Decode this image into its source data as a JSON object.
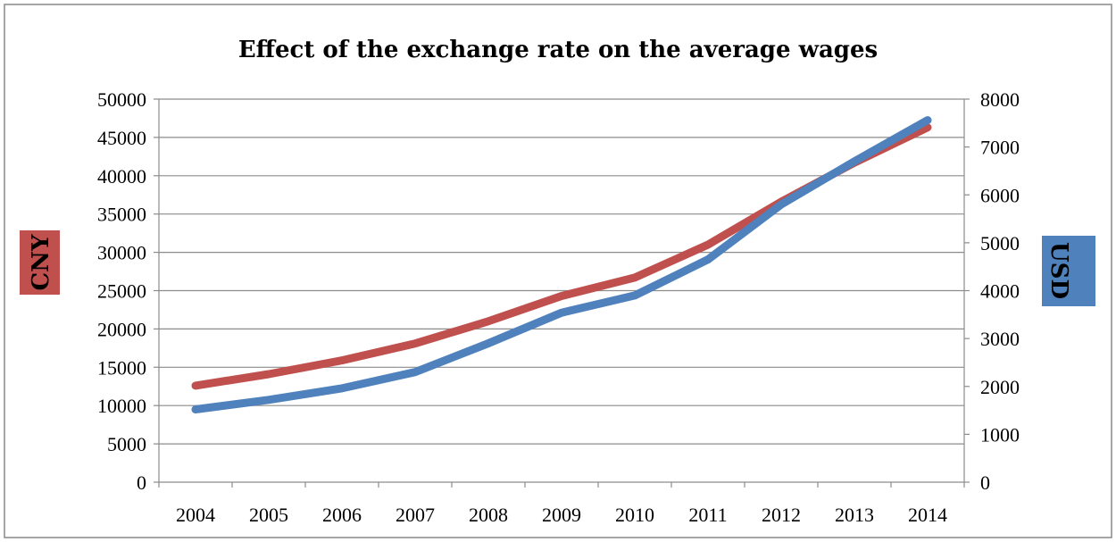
{
  "chart_data": {
    "type": "line",
    "title": "Effect of the exchange rate on the average wages",
    "categories": [
      "2004",
      "2005",
      "2006",
      "2007",
      "2008",
      "2009",
      "2010",
      "2011",
      "2012",
      "2013",
      "2014"
    ],
    "left_axis": {
      "label": "CNY",
      "ylim": [
        0,
        50000
      ],
      "ticks": [
        "0",
        "5000",
        "10000",
        "15000",
        "20000",
        "25000",
        "30000",
        "35000",
        "40000",
        "45000",
        "50000"
      ],
      "label_bg": "#c0504d"
    },
    "right_axis": {
      "label": "USD",
      "ylim": [
        0,
        8000
      ],
      "ticks": [
        "0",
        "1000",
        "2000",
        "3000",
        "4000",
        "5000",
        "6000",
        "7000",
        "8000"
      ],
      "label_bg": "#4f81bd"
    },
    "series": [
      {
        "axis": "left",
        "color": "#c0504d",
        "values": [
          12600,
          14100,
          15900,
          18100,
          21000,
          24300,
          26700,
          31000,
          36600,
          41700,
          46300
        ]
      },
      {
        "axis": "right",
        "color": "#4f81bd",
        "values": [
          1520,
          1720,
          1960,
          2300,
          2900,
          3540,
          3900,
          4650,
          5800,
          6700,
          7560
        ]
      }
    ],
    "grid": true,
    "legend": "none"
  }
}
